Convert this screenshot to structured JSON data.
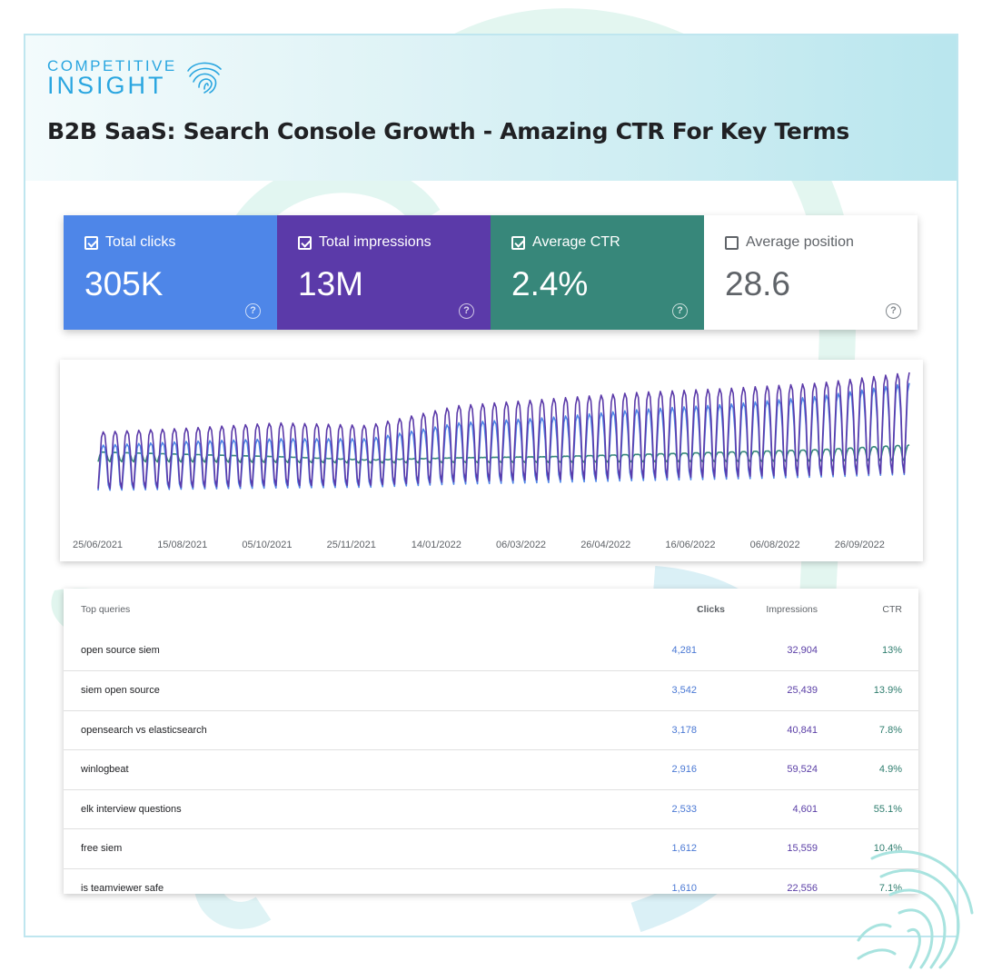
{
  "brand": {
    "line1": "COMPETITIVE",
    "line2": "INSIGHT"
  },
  "title": "B2B SaaS: Search Console Growth - Amazing CTR For Key Terms",
  "colors": {
    "clicks": "#4e86e8",
    "impressions": "#5b3aa9",
    "ctr": "#37877a",
    "position": "#ffffff",
    "accent": "#2aa6e0"
  },
  "metrics": [
    {
      "label": "Total clicks",
      "value": "305K",
      "checked": true
    },
    {
      "label": "Total impressions",
      "value": "13M",
      "checked": true
    },
    {
      "label": "Average CTR",
      "value": "2.4%",
      "checked": true
    },
    {
      "label": "Average position",
      "value": "28.6",
      "checked": false
    }
  ],
  "chart_data": {
    "type": "line",
    "x_tick_labels": [
      "25/06/2021",
      "15/08/2021",
      "05/10/2021",
      "25/11/2021",
      "14/01/2022",
      "06/03/2022",
      "26/04/2022",
      "16/06/2022",
      "06/08/2022",
      "26/09/2022"
    ],
    "series_note": "three normalized daily series shown (impressions, clicks, CTR) with weekly seasonality",
    "series": [
      {
        "key": "impressions",
        "weekly_peak_trend": [
          0.55,
          0.58,
          0.62,
          0.6,
          0.75,
          0.8,
          0.85,
          0.88,
          0.92,
          1.0
        ]
      },
      {
        "key": "clicks",
        "weekly_peak_trend": [
          0.45,
          0.48,
          0.5,
          0.5,
          0.62,
          0.66,
          0.72,
          0.76,
          0.82,
          0.92
        ]
      },
      {
        "key": "ctr",
        "weekly_peak_trend": [
          0.4,
          0.38,
          0.36,
          0.33,
          0.35,
          0.36,
          0.38,
          0.4,
          0.42,
          0.46
        ]
      }
    ]
  },
  "table": {
    "headers": {
      "query": "Top queries",
      "clicks": "Clicks",
      "impressions": "Impressions",
      "ctr": "CTR"
    },
    "rows": [
      {
        "query": "open source siem",
        "clicks": "4,281",
        "impressions": "32,904",
        "ctr": "13%"
      },
      {
        "query": "siem open source",
        "clicks": "3,542",
        "impressions": "25,439",
        "ctr": "13.9%"
      },
      {
        "query": "opensearch vs elasticsearch",
        "clicks": "3,178",
        "impressions": "40,841",
        "ctr": "7.8%"
      },
      {
        "query": "winlogbeat",
        "clicks": "2,916",
        "impressions": "59,524",
        "ctr": "4.9%"
      },
      {
        "query": "elk interview questions",
        "clicks": "2,533",
        "impressions": "4,601",
        "ctr": "55.1%"
      },
      {
        "query": "free siem",
        "clicks": "1,612",
        "impressions": "15,559",
        "ctr": "10.4%"
      },
      {
        "query": "is teamviewer safe",
        "clicks": "1,610",
        "impressions": "22,556",
        "ctr": "7.1%"
      }
    ]
  },
  "icons": {
    "help": "help-icon",
    "sort": "arrow-down-icon",
    "checkbox": "checkbox-icon",
    "fingerprint": "fingerprint-icon"
  }
}
